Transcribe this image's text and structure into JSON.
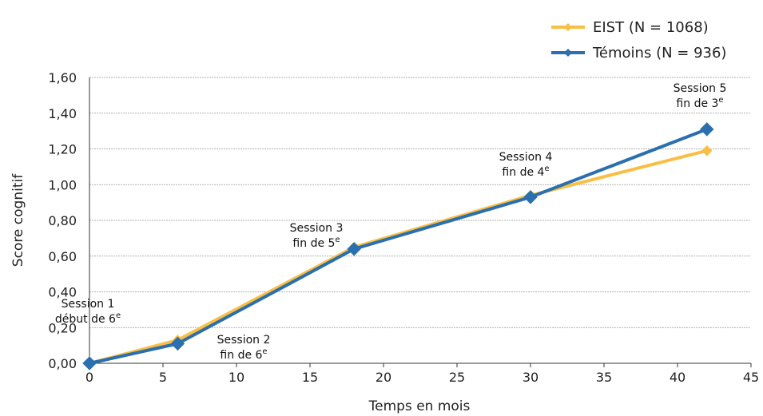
{
  "chart_data": {
    "type": "line",
    "xlabel": "Temps en mois",
    "ylabel": "Score cognitif",
    "xlim": [
      0,
      45
    ],
    "ylim": [
      0,
      1.6
    ],
    "x_ticks": [
      "0",
      "5",
      "10",
      "15",
      "20",
      "25",
      "30",
      "35",
      "40",
      "45"
    ],
    "y_ticks": [
      "0,00",
      "0,20",
      "0,40",
      "0,60",
      "0,80",
      "1,00",
      "1,20",
      "1,40",
      "1,60"
    ],
    "grid": true,
    "legend_position": "top-right",
    "series": [
      {
        "name": "EIST (N = 1068)",
        "color": "#F9BE43",
        "marker": "diamond",
        "x": [
          0,
          6,
          18,
          30,
          42
        ],
        "y": [
          0.0,
          0.13,
          0.65,
          0.94,
          1.19
        ]
      },
      {
        "name": "Témoins (N = 936)",
        "color": "#2A6FAE",
        "marker": "diamond",
        "x": [
          0,
          6,
          18,
          30,
          42
        ],
        "y": [
          0.0,
          0.11,
          0.64,
          0.93,
          1.31
        ]
      }
    ],
    "annotations": [
      {
        "line1": "Session 1",
        "line2": "début de 6",
        "sup": "e"
      },
      {
        "line1": "Session 2",
        "line2": "fin de 6",
        "sup": "e"
      },
      {
        "line1": "Session 3",
        "line2": "fin de 5",
        "sup": "e"
      },
      {
        "line1": "Session 4",
        "line2": "fin de 4",
        "sup": "e"
      },
      {
        "line1": "Session 5",
        "line2": "fin de 3",
        "sup": "e"
      }
    ]
  }
}
